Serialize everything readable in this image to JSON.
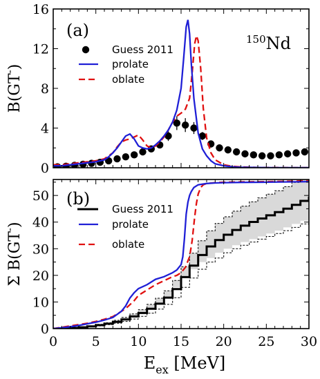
{
  "chart_data": [
    {
      "panel": "(a)",
      "type": "line",
      "xlim": [
        0,
        30
      ],
      "ylim": [
        0,
        16
      ],
      "xticks": [
        "0",
        "5",
        "10",
        "15",
        "20",
        "25",
        "30"
      ],
      "yticks": [
        "0",
        "4",
        "8",
        "12",
        "16"
      ],
      "ylabel": "B(GT⁻)",
      "annotation": "150Nd",
      "annotation_mass": "150",
      "annotation_element": "Nd",
      "legend": [
        "Guess 2011",
        "prolate",
        "oblate"
      ],
      "legend_position": "top-left",
      "colors": {
        "data": "#000000",
        "prolate": "#1f1fd6",
        "oblate": "#e01010"
      },
      "series": [
        {
          "name": "Guess 2011",
          "style": "points-with-errorbars",
          "x": [
            0.5,
            1.5,
            2.5,
            3.5,
            4.5,
            5.5,
            6.5,
            7.5,
            8.5,
            9.5,
            10.5,
            11.5,
            12.5,
            13.5,
            14.5,
            15.5,
            16.5,
            17.5,
            18.5,
            19.5,
            20.5,
            21.5,
            22.5,
            23.5,
            24.5,
            25.5,
            26.5,
            27.5,
            28.5,
            29.5
          ],
          "y": [
            0.1,
            0.15,
            0.25,
            0.35,
            0.45,
            0.55,
            0.7,
            0.9,
            1.1,
            1.3,
            1.6,
            1.9,
            2.3,
            3.2,
            4.5,
            4.3,
            4.0,
            3.2,
            2.4,
            2.0,
            1.8,
            1.6,
            1.4,
            1.3,
            1.2,
            1.2,
            1.3,
            1.4,
            1.5,
            1.6
          ],
          "yerr": [
            0.1,
            0.1,
            0.1,
            0.1,
            0.1,
            0.15,
            0.15,
            0.15,
            0.2,
            0.2,
            0.2,
            0.25,
            0.3,
            0.5,
            0.7,
            0.7,
            0.6,
            0.4,
            0.3,
            0.2,
            0.2,
            0.2,
            0.15,
            0.15,
            0.15,
            0.15,
            0.15,
            0.15,
            0.15,
            0.15
          ]
        },
        {
          "name": "prolate",
          "style": "solid",
          "x": [
            0,
            1,
            2,
            3,
            4,
            5,
            6,
            6.5,
            7,
            7.5,
            8,
            8.5,
            9,
            9.5,
            10,
            10.5,
            11,
            11.5,
            12,
            12.5,
            13,
            13.5,
            14,
            14.5,
            15,
            15.3,
            15.6,
            15.8,
            16,
            16.2,
            16.5,
            17,
            17.5,
            18,
            18.5,
            19,
            20,
            21,
            22,
            24,
            26,
            28,
            30
          ],
          "y": [
            0.2,
            0.2,
            0.3,
            0.4,
            0.5,
            0.6,
            0.8,
            1.1,
            1.5,
            2.0,
            2.6,
            3.2,
            3.4,
            2.9,
            2.2,
            2.0,
            1.9,
            2.0,
            2.3,
            2.7,
            3.2,
            3.8,
            4.6,
            5.8,
            8.0,
            11.0,
            14.2,
            14.9,
            13.5,
            10.5,
            7.0,
            3.5,
            1.9,
            1.2,
            0.7,
            0.4,
            0.2,
            0.1,
            0.05,
            0.02,
            0.01,
            0.01,
            0.01
          ]
        },
        {
          "name": "oblate",
          "style": "dashed",
          "x": [
            0,
            1,
            2,
            3,
            4,
            5,
            6,
            7,
            7.5,
            8,
            8.5,
            9,
            9.5,
            10,
            10.5,
            11,
            11.5,
            12,
            12.5,
            13,
            13.5,
            14,
            14.5,
            15,
            15.5,
            16,
            16.3,
            16.6,
            16.8,
            17,
            17.3,
            17.6,
            18,
            18.5,
            19,
            20,
            21,
            22,
            24,
            26,
            28,
            30
          ],
          "y": [
            0.3,
            0.3,
            0.4,
            0.5,
            0.6,
            0.7,
            0.9,
            1.5,
            2.1,
            2.6,
            2.8,
            2.9,
            3.1,
            3.3,
            2.8,
            2.2,
            2.0,
            2.2,
            2.6,
            3.1,
            3.8,
            4.6,
            5.2,
            5.5,
            5.9,
            7.0,
            9.5,
            12.5,
            13.3,
            12.8,
            10.0,
            6.0,
            3.0,
            1.5,
            0.8,
            0.3,
            0.15,
            0.08,
            0.03,
            0.02,
            0.01,
            0.01
          ]
        }
      ]
    },
    {
      "panel": "(b)",
      "type": "line",
      "xlim": [
        0,
        30
      ],
      "ylim": [
        0,
        56
      ],
      "xticks": [
        "0",
        "5",
        "10",
        "15",
        "20",
        "25",
        "30"
      ],
      "yticks": [
        "0",
        "10",
        "20",
        "30",
        "40",
        "50"
      ],
      "ylabel": "Σ B(GT⁻)",
      "xlabel": "Eex [MeV]",
      "legend": [
        "Guess 2011",
        "prolate",
        "oblate"
      ],
      "legend_position": "top-left",
      "colors": {
        "data": "#000000",
        "band": "#d9d9d9",
        "prolate": "#1f1fd6",
        "oblate": "#e01010"
      },
      "series": [
        {
          "name": "Guess 2011",
          "style": "step-with-band",
          "x": [
            0,
            1,
            2,
            3,
            4,
            5,
            6,
            7,
            8,
            9,
            10,
            11,
            12,
            13,
            14,
            15,
            16,
            17,
            18,
            19,
            20,
            21,
            22,
            23,
            24,
            25,
            26,
            27,
            28,
            29,
            30
          ],
          "y": [
            0,
            0.1,
            0.25,
            0.5,
            0.85,
            1.3,
            1.85,
            2.55,
            3.45,
            4.55,
            5.85,
            7.45,
            9.35,
            11.65,
            14.85,
            19.35,
            23.65,
            27.65,
            30.85,
            33.25,
            35.25,
            37.05,
            38.65,
            40.05,
            41.35,
            42.55,
            43.75,
            45.05,
            46.45,
            47.95,
            49.55
          ],
          "band_low": [
            0,
            0.1,
            0.2,
            0.4,
            0.7,
            1.0,
            1.5,
            2.0,
            2.7,
            3.6,
            4.6,
            5.8,
            7.3,
            9.1,
            11.6,
            15.5,
            19.0,
            22.3,
            25.0,
            26.5,
            28.5,
            30.0,
            31.3,
            32.5,
            33.6,
            34.6,
            35.7,
            36.8,
            38.0,
            39.3,
            40.5
          ],
          "band_high": [
            0,
            0.15,
            0.3,
            0.6,
            1.0,
            1.6,
            2.2,
            3.1,
            4.2,
            5.5,
            7.1,
            9.1,
            11.4,
            14.2,
            18.1,
            23.2,
            28.3,
            33.0,
            36.7,
            39.5,
            42.0,
            44.1,
            46.0,
            47.6,
            49.1,
            50.5,
            51.8,
            53.3,
            54.9,
            56,
            56
          ]
        },
        {
          "name": "prolate",
          "style": "solid",
          "x": [
            0,
            1,
            2,
            3,
            4,
            5,
            6,
            7,
            8,
            8.5,
            9,
            9.5,
            10,
            11,
            12,
            13,
            14,
            14.5,
            15,
            15.2,
            15.4,
            15.6,
            15.8,
            16,
            16.2,
            16.5,
            17,
            18,
            19,
            20,
            22,
            25,
            30
          ],
          "y": [
            0,
            0.3,
            0.7,
            1.2,
            1.8,
            2.4,
            3.2,
            4.2,
            6.5,
            8.5,
            11.5,
            13.5,
            15.0,
            16.5,
            18.5,
            19.5,
            21.0,
            22.0,
            24.0,
            27.0,
            34.0,
            43.0,
            47.5,
            50.0,
            51.5,
            53.0,
            54.0,
            54.5,
            54.7,
            54.8,
            54.9,
            55.0,
            55.2
          ]
        },
        {
          "name": "oblate",
          "style": "dashed",
          "x": [
            0,
            1,
            2,
            3,
            4,
            5,
            6,
            7,
            8,
            8.5,
            9,
            9.5,
            10,
            11,
            12,
            13,
            14,
            14.5,
            15,
            15.5,
            16,
            16.3,
            16.6,
            16.8,
            17,
            17.3,
            17.6,
            18,
            19,
            20,
            22,
            25,
            30
          ],
          "y": [
            0,
            0.5,
            1.0,
            1.5,
            2.0,
            2.7,
            3.5,
            4.5,
            6.5,
            7.5,
            9.0,
            10.5,
            12.5,
            14.5,
            16.5,
            18.0,
            19.5,
            20.0,
            21.0,
            23.0,
            27.0,
            33.0,
            42.0,
            47.0,
            50.5,
            53.0,
            54.0,
            54.5,
            54.8,
            55.0,
            55.1,
            55.2,
            55.5
          ]
        }
      ]
    }
  ]
}
